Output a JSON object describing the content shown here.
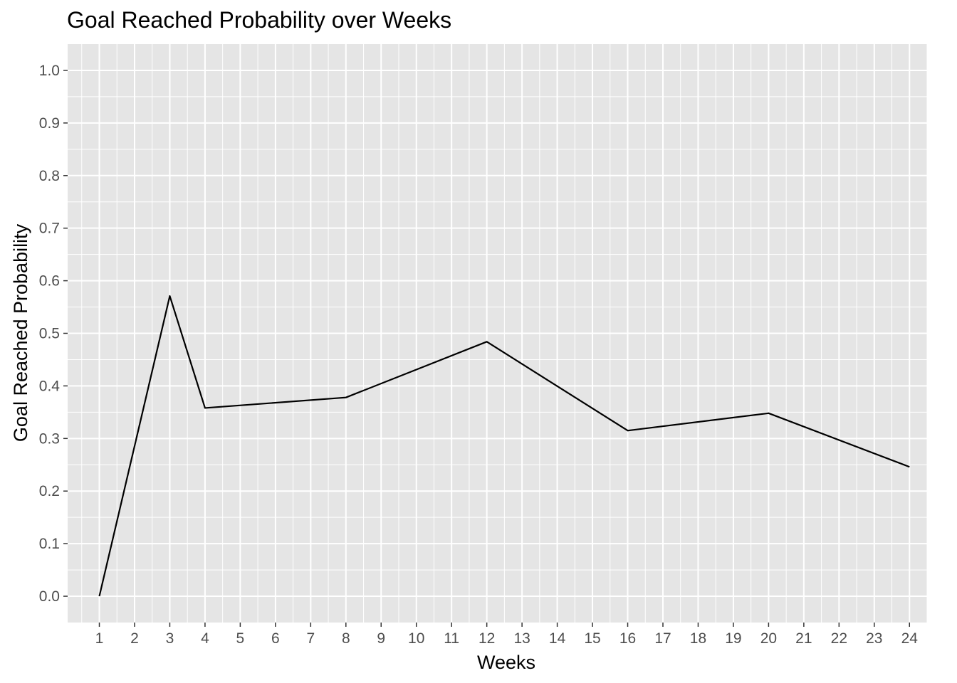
{
  "chart_data": {
    "type": "line",
    "title": "Goal Reached Probability over Weeks",
    "xlabel": "Weeks",
    "ylabel": "Goal Reached Probability",
    "x_tick_labels": [
      "1",
      "2",
      "3",
      "4",
      "5",
      "6",
      "7",
      "8",
      "9",
      "10",
      "11",
      "12",
      "13",
      "14",
      "15",
      "16",
      "17",
      "18",
      "19",
      "20",
      "21",
      "22",
      "23",
      "24"
    ],
    "y_tick_labels": [
      "0.0",
      "0.1",
      "0.2",
      "0.3",
      "0.4",
      "0.5",
      "0.6",
      "0.7",
      "0.8",
      "0.9",
      "1.0"
    ],
    "y_tick_values": [
      0.0,
      0.1,
      0.2,
      0.3,
      0.4,
      0.5,
      0.6,
      0.7,
      0.8,
      0.9,
      1.0
    ],
    "xlim": [
      0.1,
      24.5
    ],
    "ylim": [
      -0.05,
      1.05
    ],
    "grid": true,
    "legend": "none",
    "colors": {
      "panel_background": "#e5e5e5",
      "grid_line": "#ffffff",
      "line": "#000000",
      "tick_label": "#4d4d4d"
    },
    "series": [
      {
        "x": [
          1,
          3,
          4,
          8,
          12,
          16,
          20,
          24
        ],
        "y": [
          0.0,
          0.571,
          0.358,
          0.378,
          0.484,
          0.315,
          0.348,
          0.246
        ]
      }
    ]
  }
}
